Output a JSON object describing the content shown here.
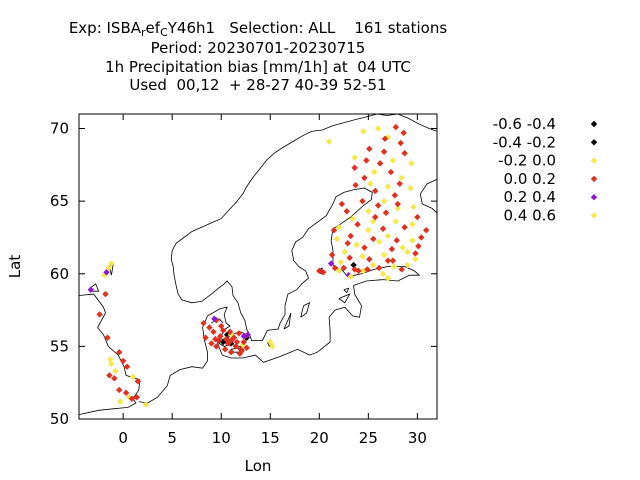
{
  "header": {
    "exp_prefix": "Exp: ISBA",
    "exp_sub1": "r",
    "exp_mid": "ef",
    "exp_sub2": "C",
    "exp_suffix": "Y46h1   Selection: ALL    161 stations",
    "period": "Period: 20230701-20230715",
    "variable": "1h Precipitation bias [mm/1h] at  04 UTC",
    "used": "Used  00,12  + 28-27 40-39 52-51"
  },
  "chart_data": {
    "type": "scatter",
    "xlabel": "Lon",
    "ylabel": "Lat",
    "xlim": [
      -4.5,
      32
    ],
    "ylim": [
      50,
      71
    ],
    "x_ticks": [
      {
        "value": 0,
        "label": "0"
      },
      {
        "value": 5,
        "label": "5"
      },
      {
        "value": 10,
        "label": "10"
      },
      {
        "value": 15,
        "label": "15"
      },
      {
        "value": 20,
        "label": "20"
      },
      {
        "value": 25,
        "label": "25"
      },
      {
        "value": 30,
        "label": "30"
      }
    ],
    "y_ticks": [
      {
        "value": 50,
        "label": "50"
      },
      {
        "value": 55,
        "label": "55"
      },
      {
        "value": 60,
        "label": "60"
      },
      {
        "value": 65,
        "label": "65"
      },
      {
        "value": 70,
        "label": "70"
      }
    ],
    "legend_position": "right",
    "series": [
      {
        "name": "-0.6 -0.4",
        "color": "#000000",
        "points": []
      },
      {
        "name": "-0.4 -0.2",
        "color": "#000000",
        "points": [
          [
            10.2,
            55.3
          ],
          [
            11.0,
            55.2
          ],
          [
            23.5,
            60.6
          ],
          [
            12.6,
            55.6
          ],
          [
            10.6,
            55.8
          ]
        ]
      },
      {
        "name": "-0.2 0.0",
        "color": "#f4e84a",
        "points": [
          [
            21.0,
            69.1
          ],
          [
            24.5,
            69.8
          ],
          [
            26.0,
            70.0
          ],
          [
            27.0,
            69.4
          ],
          [
            23.6,
            68.0
          ],
          [
            27.5,
            67.8
          ],
          [
            29.4,
            67.6
          ],
          [
            25.6,
            67.0
          ],
          [
            28.4,
            66.6
          ],
          [
            25.2,
            66.2
          ],
          [
            27.0,
            66.0
          ],
          [
            29.3,
            65.9
          ],
          [
            26.6,
            65.0
          ],
          [
            28.0,
            64.5
          ],
          [
            25.0,
            64.3
          ],
          [
            29.6,
            64.6
          ],
          [
            23.4,
            63.8
          ],
          [
            25.5,
            63.6
          ],
          [
            27.8,
            63.6
          ],
          [
            29.5,
            63.4
          ],
          [
            22.0,
            63.2
          ],
          [
            25.0,
            63.0
          ],
          [
            27.0,
            62.6
          ],
          [
            29.5,
            62.3
          ],
          [
            21.8,
            62.4
          ],
          [
            23.8,
            62.0
          ],
          [
            26.1,
            62.2
          ],
          [
            28.5,
            61.8
          ],
          [
            22.6,
            61.5
          ],
          [
            24.4,
            61.2
          ],
          [
            26.6,
            61.3
          ],
          [
            29.0,
            61.5
          ],
          [
            22.2,
            60.8
          ],
          [
            25.5,
            60.6
          ],
          [
            27.6,
            60.5
          ],
          [
            29.0,
            60.6
          ],
          [
            26.5,
            60.0
          ],
          [
            24.5,
            60.2
          ],
          [
            -1.5,
            60.4
          ],
          [
            -1.2,
            60.7
          ],
          [
            -1.9,
            59.9
          ],
          [
            -1.3,
            54.1
          ],
          [
            -1.2,
            53.8
          ],
          [
            1.0,
            52.9
          ],
          [
            0.6,
            51.5
          ],
          [
            -0.3,
            51.2
          ],
          [
            2.3,
            51.0
          ],
          [
            15.0,
            55.3
          ],
          [
            15.2,
            55.0
          ],
          [
            11.0,
            55.8
          ],
          [
            12.2,
            55.1
          ]
        ]
      },
      {
        "name": "0.0 0.2",
        "color": "#e03020",
        "points": [
          [
            27.8,
            70.1
          ],
          [
            28.6,
            69.7
          ],
          [
            26.7,
            69.3
          ],
          [
            28.3,
            69.0
          ],
          [
            25.1,
            68.6
          ],
          [
            26.6,
            68.4
          ],
          [
            28.7,
            68.3
          ],
          [
            24.8,
            67.8
          ],
          [
            26.2,
            67.6
          ],
          [
            23.6,
            67.3
          ],
          [
            27.3,
            67.0
          ],
          [
            24.6,
            66.6
          ],
          [
            28.2,
            66.2
          ],
          [
            23.7,
            66.1
          ],
          [
            25.7,
            65.7
          ],
          [
            27.7,
            65.4
          ],
          [
            24.4,
            65.0
          ],
          [
            26.0,
            64.7
          ],
          [
            22.8,
            64.3
          ],
          [
            26.8,
            64.2
          ],
          [
            30.0,
            63.9
          ],
          [
            23.9,
            63.4
          ],
          [
            26.5,
            63.1
          ],
          [
            28.7,
            63.2
          ],
          [
            21.5,
            63.0
          ],
          [
            23.2,
            62.6
          ],
          [
            30.9,
            63.0
          ],
          [
            25.5,
            62.4
          ],
          [
            27.9,
            62.3
          ],
          [
            30.4,
            62.5
          ],
          [
            22.9,
            62.1
          ],
          [
            24.6,
            61.8
          ],
          [
            27.4,
            61.7
          ],
          [
            29.8,
            61.4
          ],
          [
            21.3,
            61.3
          ],
          [
            23.1,
            61.1
          ],
          [
            25.1,
            61.0
          ],
          [
            27.0,
            60.9
          ],
          [
            21.6,
            60.4
          ],
          [
            22.5,
            60.4
          ],
          [
            23.6,
            60.3
          ],
          [
            24.9,
            60.3
          ],
          [
            26.1,
            60.4
          ],
          [
            28.4,
            60.3
          ],
          [
            20.0,
            60.2
          ],
          [
            20.4,
            60.1
          ],
          [
            24.0,
            60.2
          ],
          [
            27.5,
            60.9
          ],
          [
            30.1,
            61.9
          ],
          [
            22.3,
            64.8
          ],
          [
            25.7,
            63.9
          ],
          [
            28.0,
            64.8
          ],
          [
            -2.4,
            57.2
          ],
          [
            -1.8,
            58.6
          ],
          [
            -1.6,
            55.6
          ],
          [
            -0.4,
            54.6
          ],
          [
            -1.4,
            53.0
          ],
          [
            -0.9,
            52.8
          ],
          [
            -0.4,
            52.0
          ],
          [
            0.3,
            51.8
          ],
          [
            0.9,
            51.4
          ],
          [
            1.4,
            51.5
          ],
          [
            1.5,
            52.6
          ],
          [
            0.4,
            53.6
          ],
          [
            0.0,
            54.0
          ],
          [
            8.2,
            56.6
          ],
          [
            8.8,
            56.3
          ],
          [
            9.5,
            56.8
          ],
          [
            10.0,
            56.4
          ],
          [
            9.9,
            55.7
          ],
          [
            10.5,
            55.5
          ],
          [
            10.9,
            56.0
          ],
          [
            11.3,
            55.6
          ],
          [
            11.8,
            55.9
          ],
          [
            12.4,
            55.7
          ],
          [
            11.5,
            55.0
          ],
          [
            12.0,
            54.8
          ],
          [
            12.6,
            54.9
          ],
          [
            11.0,
            54.6
          ],
          [
            9.0,
            55.2
          ],
          [
            9.5,
            55.0
          ],
          [
            10.4,
            54.8
          ],
          [
            11.6,
            55.3
          ],
          [
            12.3,
            55.3
          ],
          [
            10.7,
            55.2
          ],
          [
            9.7,
            55.4
          ],
          [
            8.4,
            55.6
          ],
          [
            11.9,
            54.5
          ],
          [
            9.2,
            56.0
          ],
          [
            10.2,
            56.1
          ],
          [
            11.0,
            55.4
          ],
          [
            12.1,
            54.7
          ],
          [
            9.4,
            55.5
          ]
        ]
      },
      {
        "name": "0.2 0.4",
        "color": "#8b1ad0",
        "points": [
          [
            -3.3,
            58.9
          ],
          [
            -1.7,
            60.1
          ],
          [
            12.7,
            55.8
          ],
          [
            9.3,
            56.9
          ],
          [
            21.2,
            60.7
          ],
          [
            23.0,
            59.9
          ],
          [
            12.3,
            55.7
          ]
        ]
      },
      {
        "name": "0.4 0.6",
        "color": "#f4e84a",
        "points": [
          [
            22.0,
            60.2
          ],
          [
            23.2,
            59.8
          ],
          [
            27.0,
            59.7
          ],
          [
            29.8,
            61.0
          ],
          [
            -0.8,
            53.3
          ]
        ]
      }
    ]
  },
  "map": {
    "coastline_color": "#000000"
  }
}
